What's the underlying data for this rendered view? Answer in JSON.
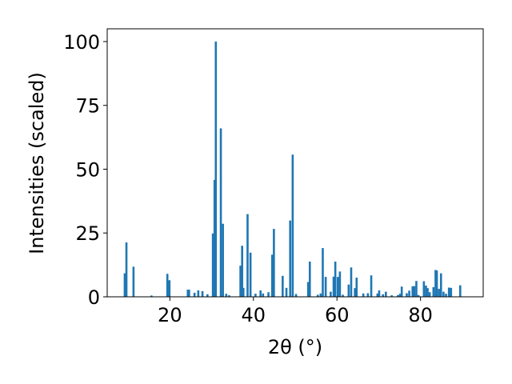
{
  "chart_data": {
    "type": "bar",
    "title": "",
    "xlabel": "2θ (°)",
    "ylabel": "Intensities (scaled)",
    "xlim": [
      5,
      95
    ],
    "ylim": [
      0,
      105
    ],
    "xticks": [
      "20",
      "40",
      "60",
      "80"
    ],
    "yticks": [
      "0",
      "25",
      "50",
      "75",
      "100"
    ],
    "grid": false,
    "bar_color": "#1f77b4",
    "bar_width": 0.5,
    "x": [
      9.2,
      9.6,
      11.3,
      15.6,
      19.4,
      19.9,
      24.3,
      24.6,
      25.9,
      26.8,
      27.8,
      29.0,
      30.3,
      30.7,
      31.0,
      32.2,
      32.7,
      33.5,
      34.2,
      36.9,
      37.3,
      37.6,
      38.6,
      39.3,
      40.5,
      41.7,
      42.3,
      43.6,
      44.5,
      44.9,
      47.0,
      47.9,
      48.8,
      49.4,
      50.2,
      53.1,
      53.5,
      55.4,
      56.1,
      56.6,
      57.3,
      58.5,
      59.2,
      59.6,
      60.2,
      60.7,
      61.4,
      62.8,
      63.4,
      64.3,
      64.7,
      66.3,
      67.4,
      68.2,
      69.7,
      70.1,
      71.0,
      71.7,
      73.1,
      74.6,
      75.1,
      75.5,
      76.7,
      77.3,
      78.1,
      78.5,
      79.0,
      79.5,
      80.8,
      81.3,
      81.7,
      82.2,
      83.1,
      83.6,
      83.9,
      84.4,
      84.9,
      85.5,
      86.1,
      86.8,
      87.3,
      89.5
    ],
    "values": [
      9.2,
      21.3,
      11.8,
      0.5,
      9.0,
      6.5,
      2.8,
      2.8,
      1.6,
      2.5,
      2.2,
      1.0,
      24.8,
      45.8,
      100.0,
      66.0,
      28.6,
      1.2,
      0.6,
      12.2,
      20.0,
      3.5,
      32.4,
      17.3,
      1.2,
      2.5,
      1.3,
      1.8,
      16.5,
      26.6,
      8.2,
      3.5,
      29.9,
      55.7,
      1.1,
      5.8,
      13.8,
      0.8,
      1.3,
      19.1,
      7.8,
      2.0,
      7.9,
      13.8,
      7.8,
      9.9,
      0.8,
      4.8,
      11.5,
      3.4,
      7.5,
      1.3,
      1.4,
      8.4,
      1.3,
      2.5,
      1.0,
      2.0,
      0.6,
      0.7,
      1.2,
      4.0,
      1.4,
      2.4,
      4.1,
      4.2,
      6.2,
      0.7,
      6.1,
      4.4,
      3.4,
      1.8,
      3.8,
      10.5,
      10.3,
      3.1,
      9.2,
      2.0,
      1.2,
      3.6,
      3.5,
      4.5
    ]
  }
}
